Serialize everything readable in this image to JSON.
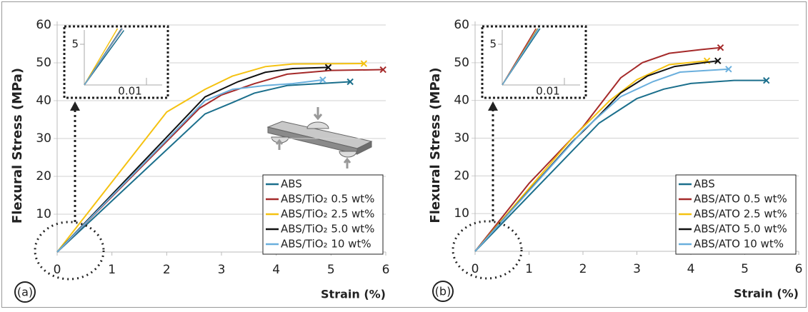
{
  "chart_data": [
    {
      "type": "line",
      "panel_label": "(a)",
      "ylabel": "Flexural Stress (MPa)",
      "xlabel": "Strain (%)",
      "xlim": [
        0,
        6
      ],
      "xticks": [
        0,
        1,
        2,
        3,
        4,
        5,
        6
      ],
      "ylim": [
        0,
        60
      ],
      "yticks": [
        10,
        20,
        30,
        40,
        50,
        60
      ],
      "grid": true,
      "inset": {
        "xticks": [
          0.01
        ],
        "yticks": [
          5
        ]
      },
      "series": [
        {
          "name": "ABS",
          "color": "#1b6f8c",
          "x": [
            0,
            2.7,
            3.2,
            3.6,
            4.2,
            5.35
          ],
          "values": [
            0,
            36.5,
            39.5,
            42,
            44,
            45
          ]
        },
        {
          "name": "ABS/TiO₂ 0.5 wt%",
          "color": "#a52a2a",
          "x": [
            0,
            2.6,
            3.0,
            3.6,
            4.2,
            5.0,
            5.95
          ],
          "values": [
            0,
            38,
            41.5,
            44.5,
            47,
            48,
            48.2
          ]
        },
        {
          "name": "ABS/TiO₂ 2.5 wt%",
          "color": "#f5c211",
          "x": [
            0,
            2.0,
            2.7,
            3.2,
            3.8,
            4.3,
            5.6
          ],
          "values": [
            0,
            37,
            43,
            46.5,
            49,
            49.7,
            49.8
          ]
        },
        {
          "name": "ABS/TiO₂ 5.0 wt%",
          "color": "#111111",
          "x": [
            0,
            2.7,
            3.3,
            3.8,
            4.3,
            4.95
          ],
          "values": [
            0,
            41,
            45,
            47.5,
            48.5,
            48.8
          ]
        },
        {
          "name": "ABS/TiO₂ 10 wt%",
          "color": "#6aafdd",
          "x": [
            0,
            2.7,
            3.2,
            3.8,
            4.3,
            4.85
          ],
          "values": [
            0,
            40,
            43,
            44,
            44.5,
            45.5
          ]
        }
      ]
    },
    {
      "type": "line",
      "panel_label": "(b)",
      "ylabel": "Flexural Stress (MPa)",
      "xlabel": "Strain (%)",
      "xlim": [
        0,
        6
      ],
      "xticks": [
        0,
        1,
        2,
        3,
        4,
        5,
        6
      ],
      "ylim": [
        0,
        60
      ],
      "yticks": [
        10,
        20,
        30,
        40,
        50,
        60
      ],
      "grid": true,
      "inset": {
        "xticks": [
          0.01
        ],
        "yticks": [
          5
        ]
      },
      "series": [
        {
          "name": "ABS",
          "color": "#1b6f8c",
          "x": [
            0,
            2.3,
            3.0,
            3.5,
            4.0,
            4.8,
            5.4
          ],
          "values": [
            0,
            34,
            40.5,
            43,
            44.5,
            45.3,
            45.3
          ]
        },
        {
          "name": "ABS/ATO 0.5 wt%",
          "color": "#a52a2a",
          "x": [
            0,
            1.0,
            2.0,
            2.7,
            3.1,
            3.6,
            4.2,
            4.55
          ],
          "values": [
            0,
            18,
            33,
            46,
            50,
            52.5,
            53.5,
            54
          ]
        },
        {
          "name": "ABS/ATO 2.5 wt%",
          "color": "#f5c211",
          "x": [
            0,
            1.8,
            2.5,
            3.0,
            3.6,
            4.3
          ],
          "values": [
            0,
            30,
            40,
            45.5,
            49.5,
            50.5
          ]
        },
        {
          "name": "ABS/ATO 5.0 wt%",
          "color": "#111111",
          "x": [
            0,
            1.8,
            2.3,
            2.7,
            3.2,
            3.7,
            4.5
          ],
          "values": [
            0,
            29,
            36,
            42,
            46.5,
            49,
            50.5
          ]
        },
        {
          "name": "ABS/ATO 10 wt%",
          "color": "#6aafdd",
          "x": [
            0,
            2.0,
            2.7,
            3.3,
            3.8,
            4.7
          ],
          "values": [
            0,
            32,
            41,
            45,
            47.5,
            48.3
          ]
        }
      ]
    }
  ]
}
